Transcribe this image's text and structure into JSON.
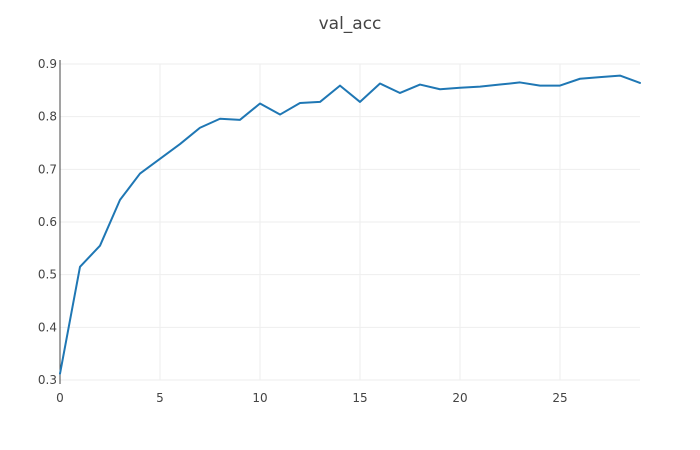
{
  "chart_data": {
    "type": "line",
    "title": "val_acc",
    "xlabel": "",
    "ylabel": "",
    "xlim": [
      0,
      29
    ],
    "ylim": [
      0.3,
      0.9
    ],
    "x_ticks": [
      0,
      5,
      10,
      15,
      20,
      25
    ],
    "y_ticks": [
      0.3,
      0.4,
      0.5,
      0.6,
      0.7,
      0.8,
      0.9
    ],
    "x_tick_labels": [
      "0",
      "5",
      "10",
      "15",
      "20",
      "25"
    ],
    "y_tick_labels": [
      "0.3",
      "0.4",
      "0.5",
      "0.6",
      "0.7",
      "0.8",
      "0.9"
    ],
    "grid": true,
    "legend": "none",
    "series": [
      {
        "color": "#1f77b4",
        "x": [
          0,
          1,
          2,
          3,
          4,
          5,
          6,
          7,
          8,
          9,
          10,
          11,
          12,
          13,
          14,
          15,
          16,
          17,
          18,
          19,
          20,
          21,
          22,
          23,
          24,
          25,
          26,
          27,
          28,
          29
        ],
        "values": [
          0.312,
          0.515,
          0.555,
          0.642,
          0.692,
          0.72,
          0.748,
          0.779,
          0.796,
          0.794,
          0.825,
          0.804,
          0.826,
          0.828,
          0.859,
          0.828,
          0.863,
          0.845,
          0.861,
          0.852,
          0.855,
          0.857,
          0.861,
          0.865,
          0.859,
          0.859,
          0.872,
          0.875,
          0.878,
          0.864
        ]
      }
    ]
  }
}
